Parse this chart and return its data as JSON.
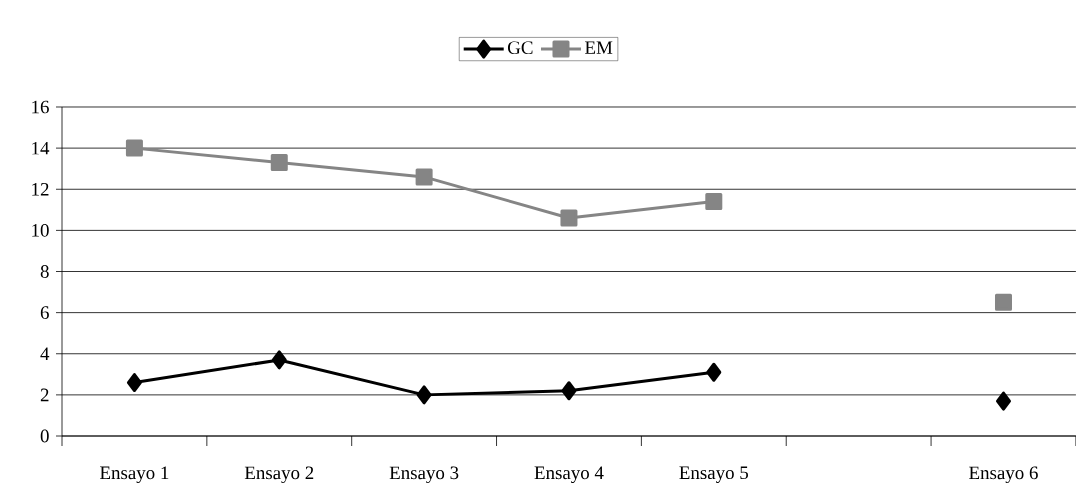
{
  "chart_data": {
    "type": "line",
    "categories": [
      "Ensayo 1",
      "Ensayo 2",
      "Ensayo 3",
      "Ensayo 4",
      "Ensayo 5",
      null,
      "Ensayo 6"
    ],
    "series": [
      {
        "name": "GC",
        "color": "#000000",
        "marker": "diamond",
        "values": [
          2.6,
          3.7,
          2.0,
          2.2,
          3.1,
          null,
          1.7
        ]
      },
      {
        "name": "EM",
        "color": "#858585",
        "marker": "square",
        "values": [
          14.0,
          13.3,
          12.6,
          10.6,
          11.4,
          null,
          6.5
        ]
      }
    ],
    "ylim": [
      0,
      16
    ],
    "yticks": [
      0,
      2,
      4,
      6,
      8,
      10,
      12,
      14,
      16
    ],
    "grid": "y",
    "legend": "top",
    "line_style": "solid"
  }
}
